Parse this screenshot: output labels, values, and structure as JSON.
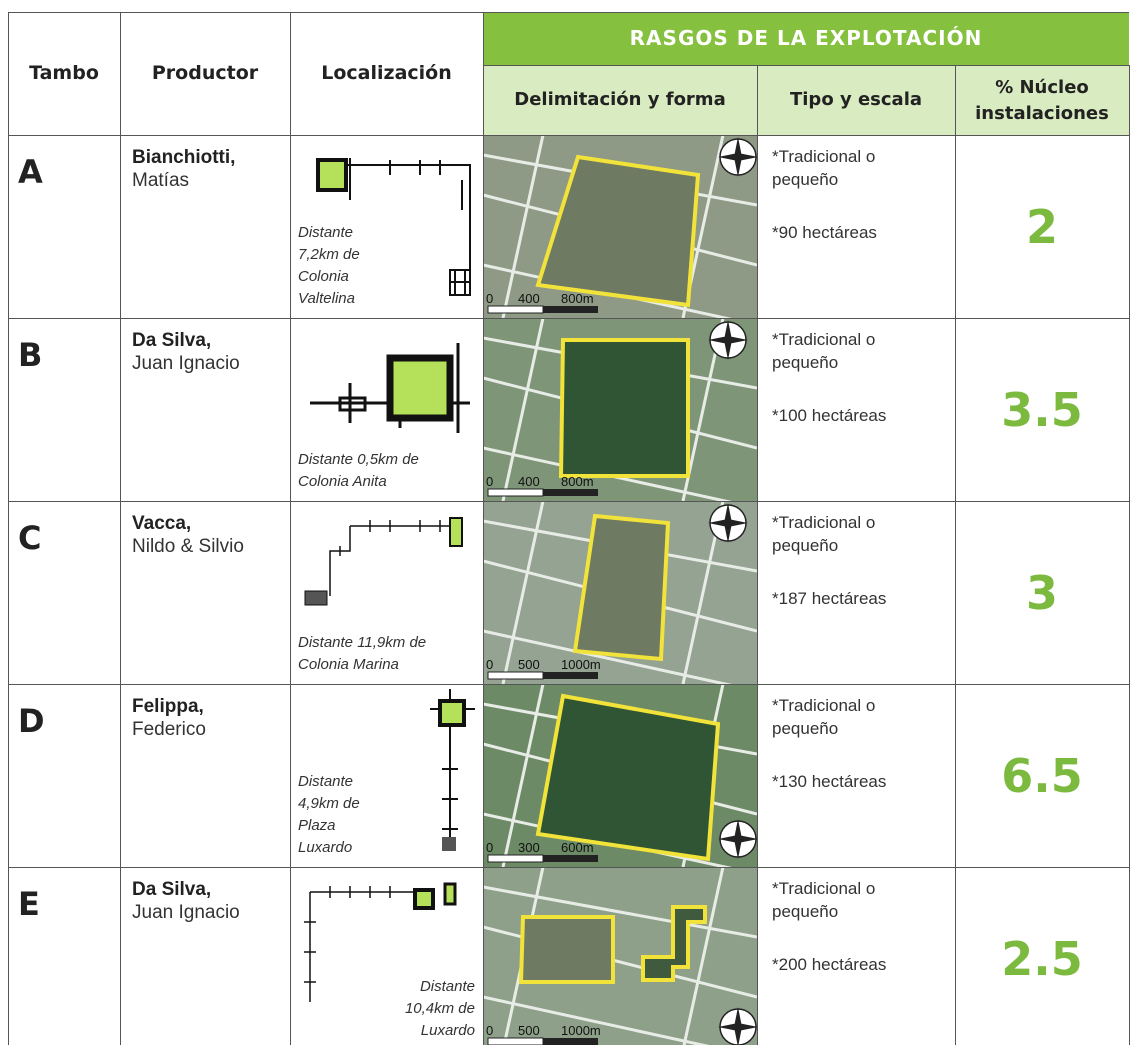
{
  "header": {
    "tambo": "Tambo",
    "productor": "Productor",
    "localizacion": "Localización",
    "group": "RASGOS DE LA EXPLOTACIÓN",
    "delimitacion": "Delimitación y forma",
    "tipo": "Tipo y escala",
    "nucleo": [
      "% Núcleo",
      "instalaciones"
    ]
  },
  "rows": [
    {
      "tambo": "A",
      "surname": "Bianchiotti,",
      "name": "Matías",
      "location": [
        "Distante",
        "7,2km de",
        "Colonia",
        "Valtelina"
      ],
      "scale": [
        "0",
        "400",
        "800m"
      ],
      "type": "*Tradicional o pequeño",
      "area": "*90 hectáreas",
      "core": "2"
    },
    {
      "tambo": "B",
      "surname": "Da Silva,",
      "name": "Juan Ignacio",
      "location": [
        "Distante 0,5km de",
        "Colonia Anita"
      ],
      "scale": [
        "0",
        "400",
        "800m"
      ],
      "type": "*Tradicional o pequeño",
      "area": "*100 hectáreas",
      "core": "3.5"
    },
    {
      "tambo": "C",
      "surname": "Vacca,",
      "name": "Nildo & Silvio",
      "location": [
        "Distante 11,9km de",
        "Colonia Marina"
      ],
      "scale": [
        "0",
        "500",
        "1000m"
      ],
      "type": "*Tradicional o pequeño",
      "area": "*187 hectáreas",
      "core": "3"
    },
    {
      "tambo": "D",
      "surname": "Felippa,",
      "name": "Federico",
      "location": [
        "Distante",
        "4,9km de",
        "Plaza",
        "Luxardo"
      ],
      "scale": [
        "0",
        "300",
        "600m"
      ],
      "type": "*Tradicional o pequeño",
      "area": "*130 hectáreas",
      "core": "6.5"
    },
    {
      "tambo": "E",
      "surname": "Da Silva,",
      "name": "Juan Ignacio",
      "location": [
        "Distante",
        "10,4km de",
        "Luxardo"
      ],
      "scale": [
        "0",
        "500",
        "1000m"
      ],
      "type": "*Tradicional o pequeño",
      "area": "*200 hectáreas",
      "core": "2.5"
    }
  ]
}
